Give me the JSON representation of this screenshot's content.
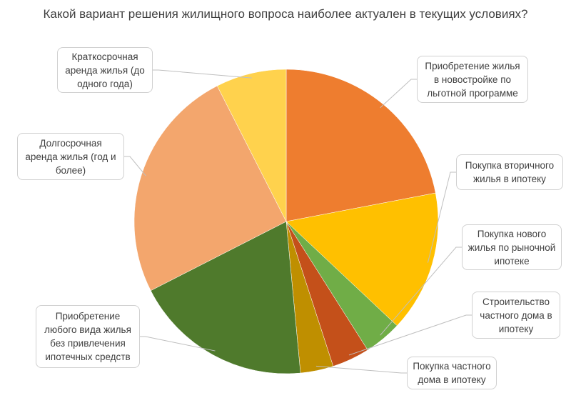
{
  "chart_data": {
    "type": "pie",
    "title": "Какой вариант решения жилищного вопроса наиболее актуален в текущих условиях?",
    "categories": [
      "Приобретение жилья в новостройке по льготной программе",
      "Покупка вторичного жилья в ипотеку",
      "Покупка нового жилья по рыночной ипотеке",
      "Строительство частного дома в ипотеку",
      "Покупка частного дома в ипотеку",
      "Приобретение любого вида жилья без привлечения ипотечных средств",
      "Долгосрочная аренда жилья (год и более)",
      "Краткосрочная аренда жилья (до одного года)"
    ],
    "values": [
      22,
      15,
      4,
      4,
      3.5,
      19,
      25,
      7.5
    ],
    "colors": [
      "#ee7d2f",
      "#ffc000",
      "#70ad47",
      "#c4501a",
      "#bf8f00",
      "#4f7a2c",
      "#f3a66d",
      "#ffd24d"
    ]
  }
}
